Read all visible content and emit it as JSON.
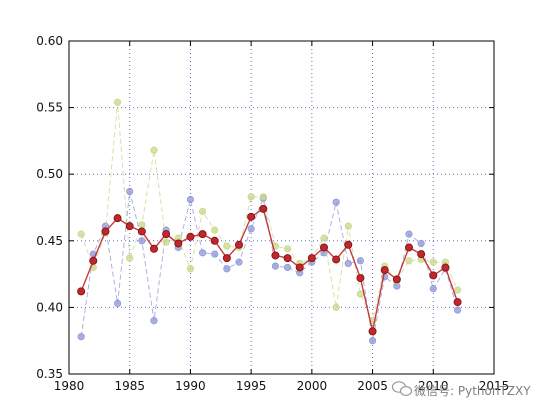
{
  "chart_data": {
    "type": "line",
    "title": "",
    "xlabel": "",
    "ylabel": "",
    "xlim": [
      1980,
      2015
    ],
    "ylim": [
      0.35,
      0.6
    ],
    "xticks": [
      1980,
      1985,
      1990,
      1995,
      2000,
      2005,
      2010,
      2015
    ],
    "yticks": [
      0.35,
      0.4,
      0.45,
      0.5,
      0.55,
      0.6
    ],
    "xtick_labels": [
      "1980",
      "1985",
      "1990",
      "1995",
      "2000",
      "2005",
      "2010",
      "2015"
    ],
    "ytick_labels": [
      "0.35",
      "0.40",
      "0.45",
      "0.50",
      "0.55",
      "0.60"
    ],
    "grid": true,
    "legend": "none",
    "x": [
      1981,
      1982,
      1983,
      1984,
      1985,
      1986,
      1987,
      1988,
      1989,
      1990,
      1991,
      1992,
      1993,
      1994,
      1995,
      1996,
      1997,
      1998,
      1999,
      2000,
      2001,
      2002,
      2003,
      2004,
      2005,
      2006,
      2007,
      2008,
      2009,
      2010,
      2011,
      2012
    ],
    "series": [
      {
        "color": "#8f98d6",
        "style": "dashed",
        "values": [
          0.378,
          0.44,
          0.461,
          0.403,
          0.487,
          0.45,
          0.39,
          0.458,
          0.445,
          0.481,
          0.441,
          0.44,
          0.429,
          0.434,
          0.459,
          0.482,
          0.431,
          0.43,
          0.426,
          0.434,
          0.441,
          0.479,
          0.433,
          0.435,
          0.375,
          0.423,
          0.416,
          0.455,
          0.448,
          0.414,
          0.429,
          0.398
        ]
      },
      {
        "color": "#c8d88a",
        "style": "dashed",
        "values": [
          0.455,
          0.43,
          0.456,
          0.554,
          0.437,
          0.462,
          0.518,
          0.449,
          0.452,
          0.429,
          0.472,
          0.458,
          0.446,
          0.445,
          0.483,
          0.483,
          0.446,
          0.444,
          0.433,
          0.437,
          0.452,
          0.4,
          0.461,
          0.41,
          0.39,
          0.431,
          0.42,
          0.435,
          0.436,
          0.434,
          0.434,
          0.413
        ]
      },
      {
        "color": "#c0262a",
        "style": "solid",
        "values": [
          0.412,
          0.435,
          0.457,
          0.467,
          0.461,
          0.457,
          0.444,
          0.455,
          0.448,
          0.453,
          0.455,
          0.45,
          0.437,
          0.447,
          0.468,
          0.474,
          0.439,
          0.437,
          0.43,
          0.437,
          0.445,
          0.436,
          0.447,
          0.422,
          0.382,
          0.428,
          0.421,
          0.445,
          0.44,
          0.424,
          0.43,
          0.404
        ]
      }
    ]
  },
  "watermark": {
    "text": "微信号: PythonTZXY",
    "icon": "wechat-bubble-icon"
  }
}
